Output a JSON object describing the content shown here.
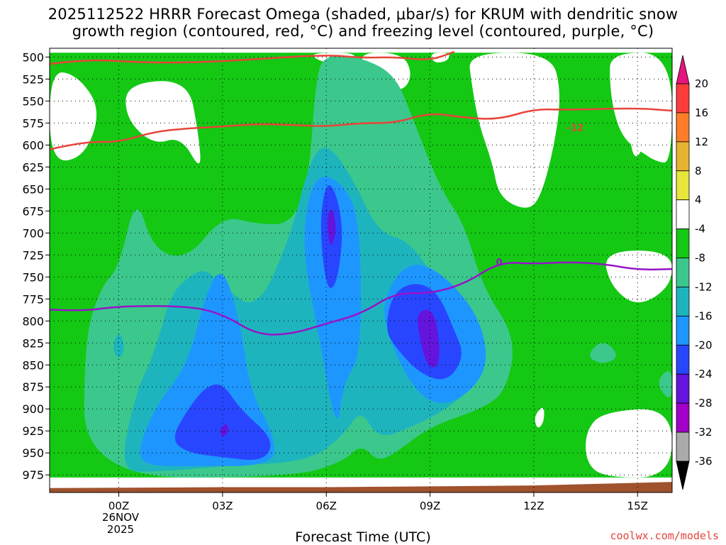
{
  "title_line1": "2025112522 HRRR Forecast Omega (shaded, μbar/s) for KRUM with dendritic snow",
  "title_line2": "growth region (contoured, red, °C) and freezing level (contoured, purple, °C)",
  "xlabel": "Forecast Time (UTC)",
  "credit": "coolwx.com/models",
  "date_label": [
    "26NOV",
    "2025"
  ],
  "chart_data": {
    "type": "heatmap",
    "x_ticks": [
      "00Z",
      "03Z",
      "06Z",
      "09Z",
      "12Z",
      "15Z"
    ],
    "x_tick_hours": [
      0,
      3,
      6,
      9,
      12,
      15
    ],
    "x_range_hours": [
      -2,
      16
    ],
    "y_ticks": [
      500,
      525,
      550,
      575,
      600,
      625,
      650,
      675,
      700,
      725,
      750,
      775,
      800,
      825,
      850,
      875,
      900,
      925,
      950,
      975
    ],
    "y_range_hpa": [
      490,
      995
    ],
    "grid": true,
    "colorbar": {
      "levels": [
        20,
        16,
        12,
        8,
        4,
        -4,
        -8,
        -12,
        -16,
        -20,
        -24,
        -28,
        -32,
        -36
      ],
      "colors": [
        "#ff3c3c",
        "#ff7d28",
        "#e6b432",
        "#e6e63c",
        "#ffffff",
        "#14c814",
        "#3cc88c",
        "#1eb4be",
        "#1e96ff",
        "#2846ff",
        "#6414dc",
        "#a000c8",
        "#aaaaaa",
        "#ffffff"
      ],
      "max_arrow_color": "#e6147d",
      "min_arrow_color": "#000000"
    },
    "contours": {
      "dgz_upper": {
        "color": "#e8443a",
        "points": [
          [
            -2,
            508
          ],
          [
            -1,
            502
          ],
          [
            1,
            507
          ],
          [
            3,
            505
          ],
          [
            6,
            497
          ],
          [
            7,
            501
          ],
          [
            8,
            500
          ],
          [
            9,
            504
          ],
          [
            9.7,
            494
          ]
        ]
      },
      "dgz_lower": {
        "color": "#e8443a",
        "label": "-12",
        "label_at": [
          13.2,
          580
        ],
        "points": [
          [
            -2,
            605
          ],
          [
            -1,
            596
          ],
          [
            0,
            597
          ],
          [
            1,
            585
          ],
          [
            2,
            581
          ],
          [
            3,
            579
          ],
          [
            4,
            576
          ],
          [
            5,
            577
          ],
          [
            6,
            579
          ],
          [
            7,
            575
          ],
          [
            8,
            575
          ],
          [
            9,
            563
          ],
          [
            10,
            569
          ],
          [
            11,
            571
          ],
          [
            12,
            559
          ],
          [
            13,
            560
          ],
          [
            15,
            558
          ],
          [
            16,
            561
          ]
        ]
      },
      "freezing_level": {
        "color": "#9614c8",
        "label": "0",
        "label_at": [
          11,
          733
        ],
        "points": [
          [
            -2,
            787
          ],
          [
            -1,
            789
          ],
          [
            0,
            783
          ],
          [
            2,
            783
          ],
          [
            3,
            792
          ],
          [
            4,
            816
          ],
          [
            5,
            815
          ],
          [
            6,
            803
          ],
          [
            7,
            792
          ],
          [
            8,
            768
          ],
          [
            9,
            769
          ],
          [
            10,
            758
          ],
          [
            11,
            733
          ],
          [
            12,
            735
          ],
          [
            13,
            733
          ],
          [
            14,
            735
          ],
          [
            15,
            742
          ],
          [
            16,
            741
          ]
        ]
      }
    },
    "ground": {
      "color": "#a0522d",
      "points": [
        [
          -2,
          990
        ],
        [
          3,
          989
        ],
        [
          6,
          989
        ],
        [
          9,
          988
        ],
        [
          12,
          987
        ],
        [
          14,
          985
        ],
        [
          16,
          983
        ]
      ]
    },
    "shaded_regions": [
      {
        "level": -4,
        "color": "#14c814",
        "points": [
          [
            -2,
            495
          ],
          [
            16,
            495
          ],
          [
            16,
            978
          ],
          [
            -2,
            978
          ]
        ]
      },
      {
        "level": 4,
        "color": "#ffffff",
        "points": [
          [
            -1,
            615
          ],
          [
            -0.5,
            560
          ],
          [
            -1.2,
            520
          ],
          [
            -2,
            515
          ],
          [
            -2,
            620
          ]
        ]
      },
      {
        "level": 4,
        "color": "#ffffff",
        "points": [
          [
            0.2,
            530
          ],
          [
            2,
            525
          ],
          [
            2.3,
            585
          ],
          [
            2.4,
            632
          ],
          [
            1.8,
            590
          ],
          [
            1,
            600
          ],
          [
            0.2,
            570
          ]
        ]
      },
      {
        "level": 4,
        "color": "#ffffff",
        "points": [
          [
            5.5,
            495
          ],
          [
            7,
            495
          ],
          [
            6.5,
            510
          ],
          [
            5.8,
            505
          ]
        ]
      },
      {
        "level": 4,
        "color": "#ffffff",
        "points": [
          [
            6.8,
            495
          ],
          [
            8.2,
            495
          ],
          [
            8.5,
            520
          ],
          [
            8.2,
            540
          ],
          [
            7.5,
            530
          ]
        ]
      },
      {
        "level": 4,
        "color": "#ffffff",
        "points": [
          [
            9,
            495
          ],
          [
            9.6,
            495
          ],
          [
            9.5,
            505
          ],
          [
            9.1,
            507
          ]
        ]
      },
      {
        "level": 4,
        "color": "#ffffff",
        "points": [
          [
            10.1,
            495
          ],
          [
            12.5,
            495
          ],
          [
            12.8,
            540
          ],
          [
            12.6,
            600
          ],
          [
            12.2,
            660
          ],
          [
            11.8,
            675
          ],
          [
            11.0,
            660
          ],
          [
            10.8,
            620
          ],
          [
            10.4,
            575
          ],
          [
            10.2,
            530
          ]
        ]
      },
      {
        "level": 4,
        "color": "#ffffff",
        "points": [
          [
            14.2,
            495
          ],
          [
            16,
            495
          ],
          [
            16,
            622
          ],
          [
            15.5,
            618
          ],
          [
            15.2,
            610
          ],
          [
            14.8,
            600
          ],
          [
            14.5,
            585
          ],
          [
            14.3,
            560
          ],
          [
            14.2,
            530
          ]
        ]
      },
      {
        "level": 4,
        "color": "#ffffff",
        "points": [
          [
            14.7,
            570
          ],
          [
            15.1,
            540
          ],
          [
            15.3,
            590
          ],
          [
            14.9,
            623
          ]
        ]
      },
      {
        "level": 4,
        "color": "#ffffff",
        "points": [
          [
            14,
            720
          ],
          [
            16,
            720
          ],
          [
            16,
            760
          ],
          [
            15,
            785
          ],
          [
            14.2,
            760
          ]
        ]
      },
      {
        "level": 4,
        "color": "#ffffff",
        "points": [
          [
            12,
            908
          ],
          [
            12.3,
            895
          ],
          [
            12.3,
            915
          ],
          [
            12.1,
            924
          ]
        ]
      },
      {
        "level": 4,
        "color": "#ffffff",
        "points": [
          [
            13.5,
            925
          ],
          [
            14,
            903
          ],
          [
            16,
            898
          ],
          [
            16,
            978
          ],
          [
            14,
            978
          ],
          [
            13.5,
            960
          ]
        ]
      },
      {
        "level": 4,
        "color": "#ffffff",
        "points": [
          [
            6.9,
            860
          ],
          [
            7.2,
            860
          ],
          [
            7.2,
            895
          ],
          [
            7,
            900
          ]
        ]
      },
      {
        "level": -8,
        "color": "#3cc88c",
        "points": [
          [
            -1,
            978
          ],
          [
            -1,
            820
          ],
          [
            -0.5,
            760
          ],
          [
            0,
            740
          ],
          [
            0.5,
            655
          ],
          [
            1,
            720
          ],
          [
            2,
            730
          ],
          [
            3,
            680
          ],
          [
            4,
            690
          ],
          [
            5,
            690
          ],
          [
            5.5,
            640
          ],
          [
            5.7,
            520
          ],
          [
            6,
            497
          ],
          [
            7,
            500
          ],
          [
            8,
            520
          ],
          [
            8.5,
            570
          ],
          [
            9.3,
            650
          ],
          [
            10,
            690
          ],
          [
            10.5,
            760
          ],
          [
            11.5,
            820
          ],
          [
            11.2,
            880
          ],
          [
            10.5,
            900
          ],
          [
            9,
            920
          ],
          [
            8,
            950
          ],
          [
            7.5,
            960
          ],
          [
            7,
            940
          ],
          [
            6.5,
            960
          ],
          [
            5,
            978
          ]
        ]
      },
      {
        "level": -8,
        "color": "#3cc88c",
        "points": [
          [
            13.5,
            840
          ],
          [
            14,
            820
          ],
          [
            14.5,
            840
          ],
          [
            14,
            850
          ]
        ]
      },
      {
        "level": -8,
        "color": "#3cc88c",
        "points": [
          [
            15.5,
            870
          ],
          [
            16,
            850
          ],
          [
            16,
            895
          ]
        ]
      },
      {
        "level": -12,
        "color": "#1eb4be",
        "points": [
          [
            -0.2,
            830
          ],
          [
            0,
            810
          ],
          [
            0.2,
            830
          ],
          [
            0,
            845
          ]
        ]
      },
      {
        "level": -12,
        "color": "#1eb4be",
        "points": [
          [
            0,
            970
          ],
          [
            0.5,
            880
          ],
          [
            1,
            840
          ],
          [
            1.5,
            770
          ],
          [
            2,
            750
          ],
          [
            2.5,
            740
          ],
          [
            3,
            760
          ],
          [
            4,
            790
          ],
          [
            5,
            700
          ],
          [
            5.5,
            620
          ],
          [
            6,
            595
          ],
          [
            6.8,
            640
          ],
          [
            7.5,
            700
          ],
          [
            8.5,
            710
          ],
          [
            9.5,
            780
          ],
          [
            10.5,
            830
          ],
          [
            10.4,
            870
          ],
          [
            9.5,
            900
          ],
          [
            8.5,
            920
          ],
          [
            7.5,
            935
          ],
          [
            7,
            900
          ],
          [
            6.5,
            930
          ],
          [
            5.5,
            960
          ],
          [
            3,
            965
          ],
          [
            1,
            972
          ]
        ]
      },
      {
        "level": -16,
        "color": "#1e96ff",
        "points": [
          [
            0.5,
            955
          ],
          [
            1,
            900
          ],
          [
            2,
            850
          ],
          [
            2.5,
            770
          ],
          [
            3,
            735
          ],
          [
            3.5,
            800
          ],
          [
            3.8,
            880
          ],
          [
            4.5,
            930
          ],
          [
            4.5,
            965
          ],
          [
            2,
            965
          ],
          [
            1,
            965
          ]
        ]
      },
      {
        "level": -16,
        "color": "#1e96ff",
        "points": [
          [
            5.3,
            720
          ],
          [
            5.5,
            650
          ],
          [
            6,
            630
          ],
          [
            6.8,
            660
          ],
          [
            7,
            720
          ],
          [
            7,
            840
          ],
          [
            6.5,
            870
          ],
          [
            6.3,
            930
          ],
          [
            5.8,
            820
          ]
        ]
      },
      {
        "level": -16,
        "color": "#1e96ff",
        "points": [
          [
            7.6,
            800
          ],
          [
            7.8,
            760
          ],
          [
            8.5,
            730
          ],
          [
            9.5,
            750
          ],
          [
            10.5,
            800
          ],
          [
            10.7,
            860
          ],
          [
            9.5,
            900
          ],
          [
            8.5,
            880
          ]
        ]
      },
      {
        "level": -20,
        "color": "#2846ff",
        "points": [
          [
            1.5,
            935
          ],
          [
            2,
            900
          ],
          [
            2.5,
            875
          ],
          [
            3,
            870
          ],
          [
            3.5,
            900
          ],
          [
            4.5,
            935
          ],
          [
            4.2,
            960
          ],
          [
            3,
            955
          ],
          [
            2,
            950
          ]
        ]
      },
      {
        "level": -20,
        "color": "#2846ff",
        "points": [
          [
            5.8,
            690
          ],
          [
            6,
            640
          ],
          [
            6.3,
            655
          ],
          [
            6.5,
            700
          ],
          [
            6.3,
            760
          ],
          [
            6,
            765
          ]
        ]
      },
      {
        "level": -20,
        "color": "#2846ff",
        "points": [
          [
            7.7,
            810
          ],
          [
            7.9,
            770
          ],
          [
            8.5,
            755
          ],
          [
            9.2,
            765
          ],
          [
            9.7,
            810
          ],
          [
            10,
            840
          ],
          [
            9.5,
            870
          ],
          [
            8.7,
            860
          ],
          [
            8,
            830
          ]
        ]
      },
      {
        "level": -24,
        "color": "#6414dc",
        "points": [
          [
            2.9,
            925
          ],
          [
            3.1,
            915
          ],
          [
            3.2,
            925
          ],
          [
            3,
            933
          ]
        ]
      },
      {
        "level": -24,
        "color": "#6414dc",
        "points": [
          [
            6,
            680
          ],
          [
            6.2,
            670
          ],
          [
            6.3,
            700
          ],
          [
            6.1,
            720
          ]
        ]
      },
      {
        "level": -24,
        "color": "#6414dc",
        "points": [
          [
            8.6,
            790
          ],
          [
            9.1,
            785
          ],
          [
            9.3,
            830
          ],
          [
            9.2,
            855
          ],
          [
            8.9,
            850
          ],
          [
            8.7,
            820
          ]
        ]
      }
    ]
  }
}
